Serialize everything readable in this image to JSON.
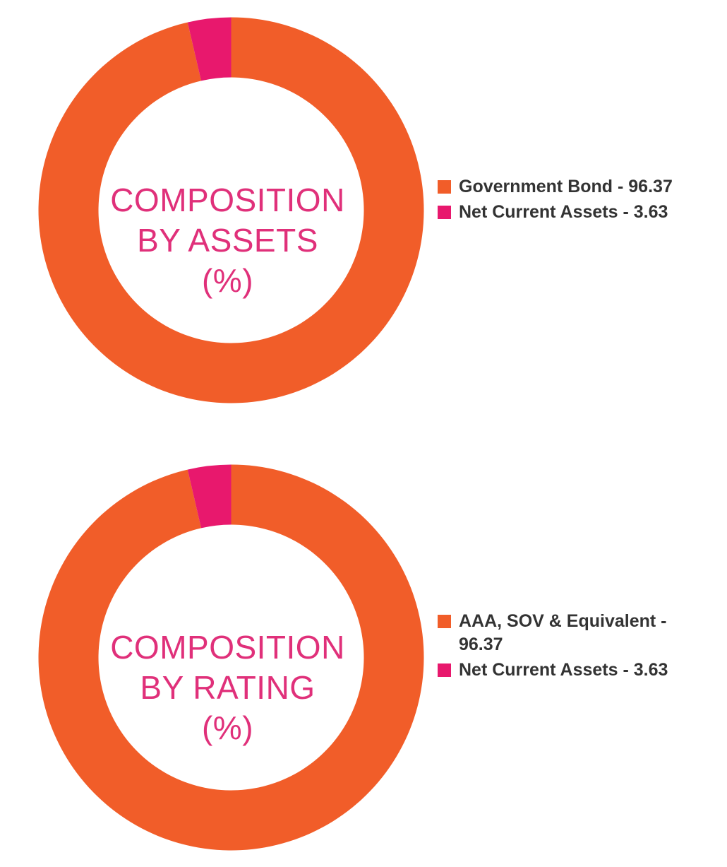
{
  "colors": {
    "government_bond": "#f15d29",
    "net_current_assets": "#e8186d",
    "center_text": "#e0307a"
  },
  "chart_data": [
    {
      "type": "pie",
      "title_lines": [
        "COMPOSITION",
        "BY ASSETS",
        "(%)"
      ],
      "slices": [
        {
          "label": "Government Bond - 96.37",
          "value": 96.37,
          "color": "#f15d29"
        },
        {
          "label": "Net Current Assets - 3.63",
          "value": 3.63,
          "color": "#e8186d"
        }
      ],
      "legend_position": "right"
    },
    {
      "type": "pie",
      "title_lines": [
        "COMPOSITION",
        "BY RATING",
        "(%)"
      ],
      "slices": [
        {
          "label": "AAA, SOV & Equivalent - 96.37",
          "value": 96.37,
          "color": "#f15d29"
        },
        {
          "label": "Net Current Assets - 3.63",
          "value": 3.63,
          "color": "#e8186d"
        }
      ],
      "legend_position": "right"
    }
  ]
}
